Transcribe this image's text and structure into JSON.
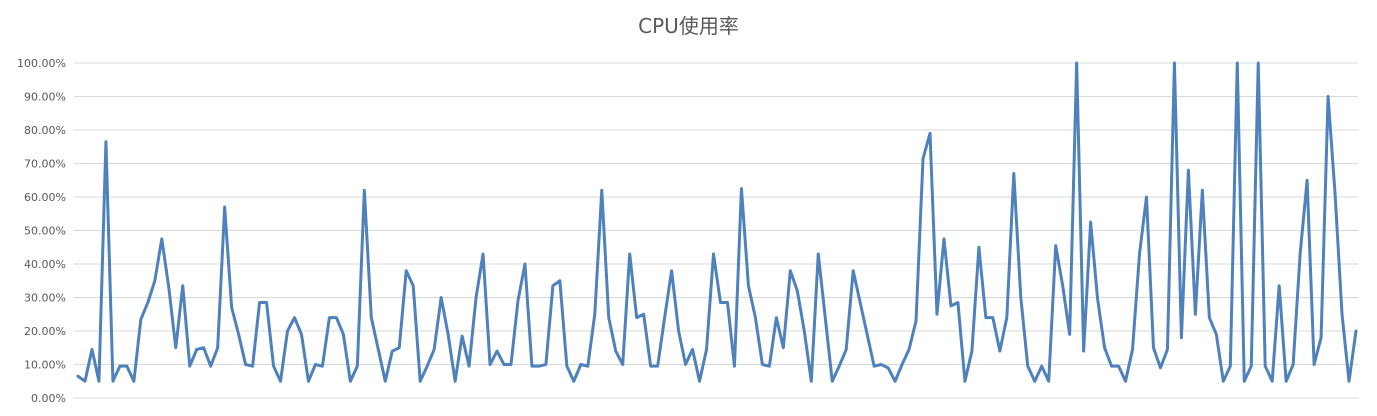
{
  "chart_data": {
    "type": "line",
    "title": "CPU使用率",
    "xlabel": "",
    "ylabel": "",
    "ylim": [
      0,
      100
    ],
    "grid": true,
    "legend": "none",
    "y_ticks": [
      "0.00%",
      "10.00%",
      "20.00%",
      "30.00%",
      "40.00%",
      "50.00%",
      "60.00%",
      "70.00%",
      "80.00%",
      "90.00%",
      "100.00%"
    ],
    "series": [
      {
        "color": "#4f81bd",
        "values": [
          6.5,
          5,
          14.5,
          5,
          76.5,
          5,
          9.5,
          9.5,
          5,
          23.5,
          28.5,
          35,
          47.5,
          33,
          15,
          33.5,
          9.5,
          14.5,
          15,
          9.5,
          15,
          57,
          27,
          19,
          10,
          9.5,
          28.5,
          28.5,
          9.5,
          5,
          20,
          24,
          19,
          5,
          10,
          9.5,
          24,
          24,
          19,
          5,
          9.5,
          62,
          24,
          14.5,
          5,
          14,
          15,
          38,
          33.5,
          5,
          9.5,
          14.5,
          30,
          19,
          5,
          18.5,
          9.5,
          30,
          43,
          10,
          14,
          10,
          10,
          29,
          40,
          9.5,
          9.5,
          10,
          33.5,
          35,
          9.5,
          5,
          10,
          9.5,
          25,
          62,
          24,
          14,
          10,
          43,
          24,
          25,
          9.5,
          9.5,
          24,
          38,
          20,
          10,
          14.5,
          5,
          14.5,
          43,
          28.5,
          28.5,
          9.5,
          62.5,
          33.5,
          24,
          10,
          9.5,
          24,
          15,
          38,
          32,
          20,
          5,
          43,
          24,
          5,
          9.5,
          14.5,
          38,
          28.5,
          19,
          9.5,
          10,
          9,
          5,
          10,
          14.5,
          23,
          71.5,
          79,
          25,
          47.5,
          27.5,
          28.5,
          5,
          14,
          45,
          24,
          24,
          14,
          24,
          67,
          30,
          9.5,
          5,
          9.5,
          5,
          45.5,
          33.5,
          19,
          100,
          14,
          52.5,
          29.5,
          15,
          9.5,
          9.5,
          5,
          14.5,
          43,
          60,
          15,
          9,
          14.5,
          100,
          18,
          68,
          25,
          62,
          24,
          19,
          5,
          9.5,
          100,
          5,
          9.5,
          100,
          9.5,
          5,
          33.5,
          5,
          10,
          43,
          65,
          10,
          18,
          90,
          61,
          25,
          5,
          20
        ]
      }
    ]
  }
}
